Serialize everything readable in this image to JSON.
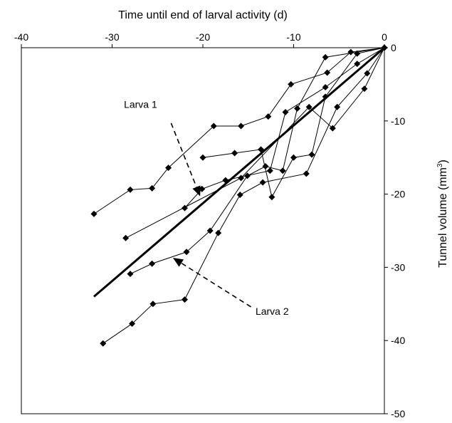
{
  "chart_data": {
    "type": "scatter",
    "title": "",
    "xlabel": "Time until end of larval activity (d)",
    "ylabel": "Tunnel volume (mm",
    "ylabel_superscript": "3",
    "ylabel_suffix": ")",
    "xlim": [
      -40,
      0
    ],
    "ylim": [
      -50,
      0
    ],
    "xticks": [
      -40,
      -30,
      -20,
      -10,
      0
    ],
    "yticks": [
      0,
      -10,
      -20,
      -30,
      -40,
      -50
    ],
    "x_axis_position": "top",
    "y_axis_position": "right",
    "grid": false,
    "legend": "none",
    "series": [
      {
        "values": [
          [
            -32,
            -22.7
          ],
          [
            -28,
            -19.4
          ],
          [
            -25.6,
            -19.2
          ],
          [
            -23.8,
            -16.4
          ],
          [
            -18.8,
            -10.7
          ],
          [
            -15.8,
            -10.7
          ],
          [
            -12.8,
            -9.4
          ],
          [
            -10.3,
            -5.0
          ],
          [
            -6.3,
            -3.4
          ],
          [
            -3.7,
            -0.6
          ],
          [
            0,
            0
          ]
        ]
      },
      {
        "values": [
          [
            -22,
            -21.9
          ],
          [
            -20.1,
            -19.3
          ],
          [
            -17.5,
            -18.1
          ],
          [
            -12.6,
            -16.8
          ],
          [
            -10.9,
            -8.8
          ],
          [
            -6.5,
            -5.4
          ],
          [
            -3.0,
            -2.2
          ],
          [
            0,
            0
          ]
        ]
      },
      {
        "values": [
          [
            -20,
            -15.0
          ],
          [
            -16.5,
            -14.4
          ],
          [
            -13.6,
            -13.9
          ],
          [
            -12.4,
            -20.4
          ],
          [
            -10.0,
            -15.0
          ],
          [
            -8.0,
            -14.6
          ],
          [
            -6.5,
            -6.7
          ],
          [
            -3.0,
            -0.8
          ],
          [
            0,
            0
          ]
        ]
      },
      {
        "values": [
          [
            -28,
            -30.9
          ],
          [
            -25.6,
            -29.5
          ],
          [
            -21.8,
            -27.9
          ],
          [
            -19.2,
            -25.0
          ],
          [
            -15.1,
            -17.5
          ],
          [
            -13.1,
            -16.2
          ],
          [
            -11.2,
            -16.8
          ],
          [
            -9.6,
            -8.3
          ],
          [
            -6.5,
            -1.3
          ],
          [
            0,
            0
          ]
        ]
      },
      {
        "values": [
          [
            -31,
            -40.4
          ],
          [
            -27.8,
            -37.7
          ],
          [
            -25.5,
            -35.0
          ],
          [
            -22,
            -34.4
          ],
          [
            -18.3,
            -25.3
          ],
          [
            -15.9,
            -20.1
          ],
          [
            -13.4,
            -18.4
          ],
          [
            -8.6,
            -17.2
          ],
          [
            -5.2,
            -8.1
          ],
          [
            -1.9,
            -3.5
          ],
          [
            0,
            0
          ]
        ]
      },
      {
        "values": [
          [
            -28.5,
            -26.0
          ],
          [
            -15.8,
            -17.8
          ],
          [
            -8.3,
            -8.1
          ],
          [
            -5.7,
            -11.0
          ],
          [
            -2.2,
            -5.6
          ],
          [
            0,
            0
          ]
        ]
      }
    ],
    "trend_line": {
      "x": [
        -32,
        0
      ],
      "y": [
        -34,
        0
      ]
    },
    "annotations": [
      {
        "text": "Larva 1",
        "label_at": [
          -28.7,
          -8.2
        ],
        "arrow_from": [
          -23.5,
          -10.3
        ],
        "arrow_to": [
          -20.3,
          -20.3
        ]
      },
      {
        "text": "Larva 2",
        "label_at": [
          -14.2,
          -36.5
        ],
        "arrow_from": [
          -14.7,
          -35.4
        ],
        "arrow_to": [
          -23.3,
          -28.7
        ]
      }
    ]
  }
}
